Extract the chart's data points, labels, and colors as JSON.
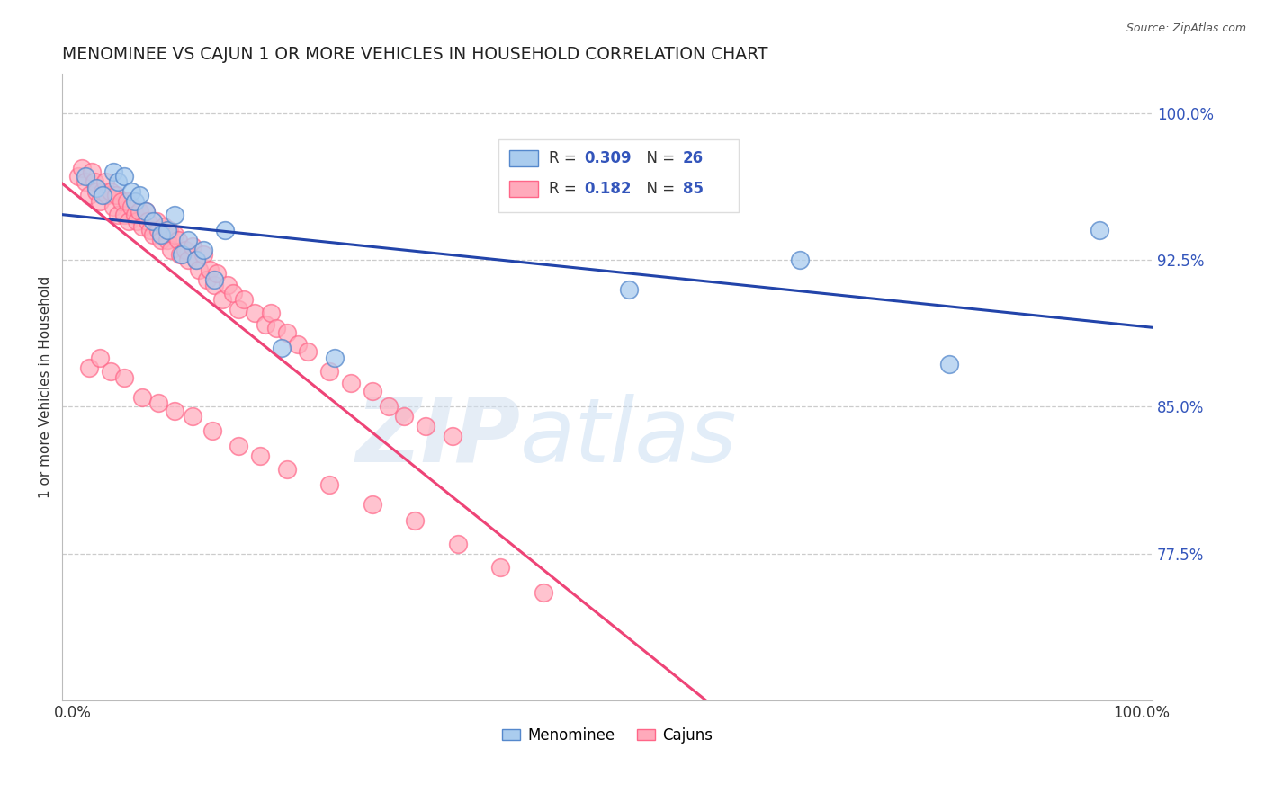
{
  "title": "MENOMINEE VS CAJUN 1 OR MORE VEHICLES IN HOUSEHOLD CORRELATION CHART",
  "source": "Source: ZipAtlas.com",
  "ylabel": "1 or more Vehicles in Household",
  "ylim": [
    0.7,
    1.02
  ],
  "xlim": [
    -0.01,
    1.01
  ],
  "grid_color": "#cccccc",
  "background_color": "#ffffff",
  "menominee_color": "#aaccee",
  "cajun_color": "#ffaabb",
  "menominee_edge": "#5588cc",
  "cajun_edge": "#ff6688",
  "trend_menominee_color": "#2244aa",
  "trend_cajun_color": "#ee4477",
  "legend_R_menominee": "0.309",
  "legend_N_menominee": "26",
  "legend_R_cajun": "0.182",
  "legend_N_cajun": "85",
  "watermark_zip": "ZIP",
  "watermark_atlas": "atlas",
  "ytick_vals": [
    0.775,
    0.85,
    0.925,
    1.0
  ],
  "ytick_labels": [
    "77.5%",
    "85.0%",
    "92.5%",
    "100.0%"
  ],
  "grid_yticks": [
    0.775,
    0.85,
    0.925,
    1.0
  ],
  "menominee_x": [
    0.012,
    0.022,
    0.028,
    0.038,
    0.042,
    0.048,
    0.055,
    0.058,
    0.062,
    0.068,
    0.075,
    0.082,
    0.088,
    0.095,
    0.102,
    0.108,
    0.115,
    0.122,
    0.132,
    0.142,
    0.195,
    0.245,
    0.52,
    0.68,
    0.82,
    0.96
  ],
  "menominee_y": [
    0.968,
    0.962,
    0.958,
    0.97,
    0.965,
    0.968,
    0.96,
    0.955,
    0.958,
    0.95,
    0.945,
    0.938,
    0.94,
    0.948,
    0.928,
    0.935,
    0.925,
    0.93,
    0.915,
    0.94,
    0.88,
    0.875,
    0.91,
    0.925,
    0.872,
    0.94
  ],
  "cajun_x": [
    0.005,
    0.008,
    0.012,
    0.015,
    0.018,
    0.02,
    0.022,
    0.025,
    0.028,
    0.03,
    0.032,
    0.035,
    0.038,
    0.04,
    0.042,
    0.045,
    0.048,
    0.05,
    0.052,
    0.055,
    0.058,
    0.06,
    0.062,
    0.065,
    0.068,
    0.07,
    0.072,
    0.075,
    0.078,
    0.08,
    0.082,
    0.085,
    0.088,
    0.09,
    0.092,
    0.095,
    0.098,
    0.1,
    0.105,
    0.108,
    0.112,
    0.115,
    0.118,
    0.122,
    0.125,
    0.128,
    0.132,
    0.135,
    0.14,
    0.145,
    0.15,
    0.155,
    0.16,
    0.17,
    0.18,
    0.185,
    0.19,
    0.2,
    0.21,
    0.22,
    0.24,
    0.26,
    0.28,
    0.295,
    0.31,
    0.33,
    0.355,
    0.015,
    0.025,
    0.035,
    0.048,
    0.065,
    0.08,
    0.095,
    0.112,
    0.13,
    0.155,
    0.175,
    0.2,
    0.24,
    0.28,
    0.32,
    0.36,
    0.4,
    0.44
  ],
  "cajun_y": [
    0.968,
    0.972,
    0.965,
    0.958,
    0.97,
    0.965,
    0.96,
    0.955,
    0.96,
    0.965,
    0.958,
    0.96,
    0.952,
    0.958,
    0.948,
    0.955,
    0.948,
    0.955,
    0.945,
    0.952,
    0.948,
    0.945,
    0.95,
    0.942,
    0.95,
    0.945,
    0.94,
    0.938,
    0.945,
    0.94,
    0.935,
    0.942,
    0.935,
    0.94,
    0.93,
    0.938,
    0.935,
    0.928,
    0.93,
    0.925,
    0.932,
    0.925,
    0.92,
    0.928,
    0.915,
    0.92,
    0.912,
    0.918,
    0.905,
    0.912,
    0.908,
    0.9,
    0.905,
    0.898,
    0.892,
    0.898,
    0.89,
    0.888,
    0.882,
    0.878,
    0.868,
    0.862,
    0.858,
    0.85,
    0.845,
    0.84,
    0.835,
    0.87,
    0.875,
    0.868,
    0.865,
    0.855,
    0.852,
    0.848,
    0.845,
    0.838,
    0.83,
    0.825,
    0.818,
    0.81,
    0.8,
    0.792,
    0.78,
    0.768,
    0.755
  ]
}
